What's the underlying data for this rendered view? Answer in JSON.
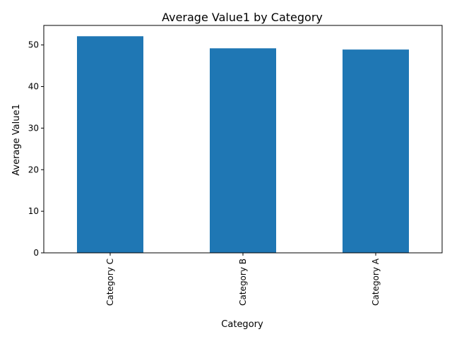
{
  "chart_data": {
    "type": "bar",
    "title": "Average Value1 by Category",
    "xlabel": "Category",
    "ylabel": "Average Value1",
    "categories": [
      "Category C",
      "Category B",
      "Category A"
    ],
    "values": [
      52.1,
      49.2,
      48.9
    ],
    "ylim": [
      0,
      54.7
    ],
    "yticks": [
      0,
      10,
      20,
      30,
      40,
      50
    ],
    "grid": false,
    "bar_color": "#1f77b4"
  }
}
